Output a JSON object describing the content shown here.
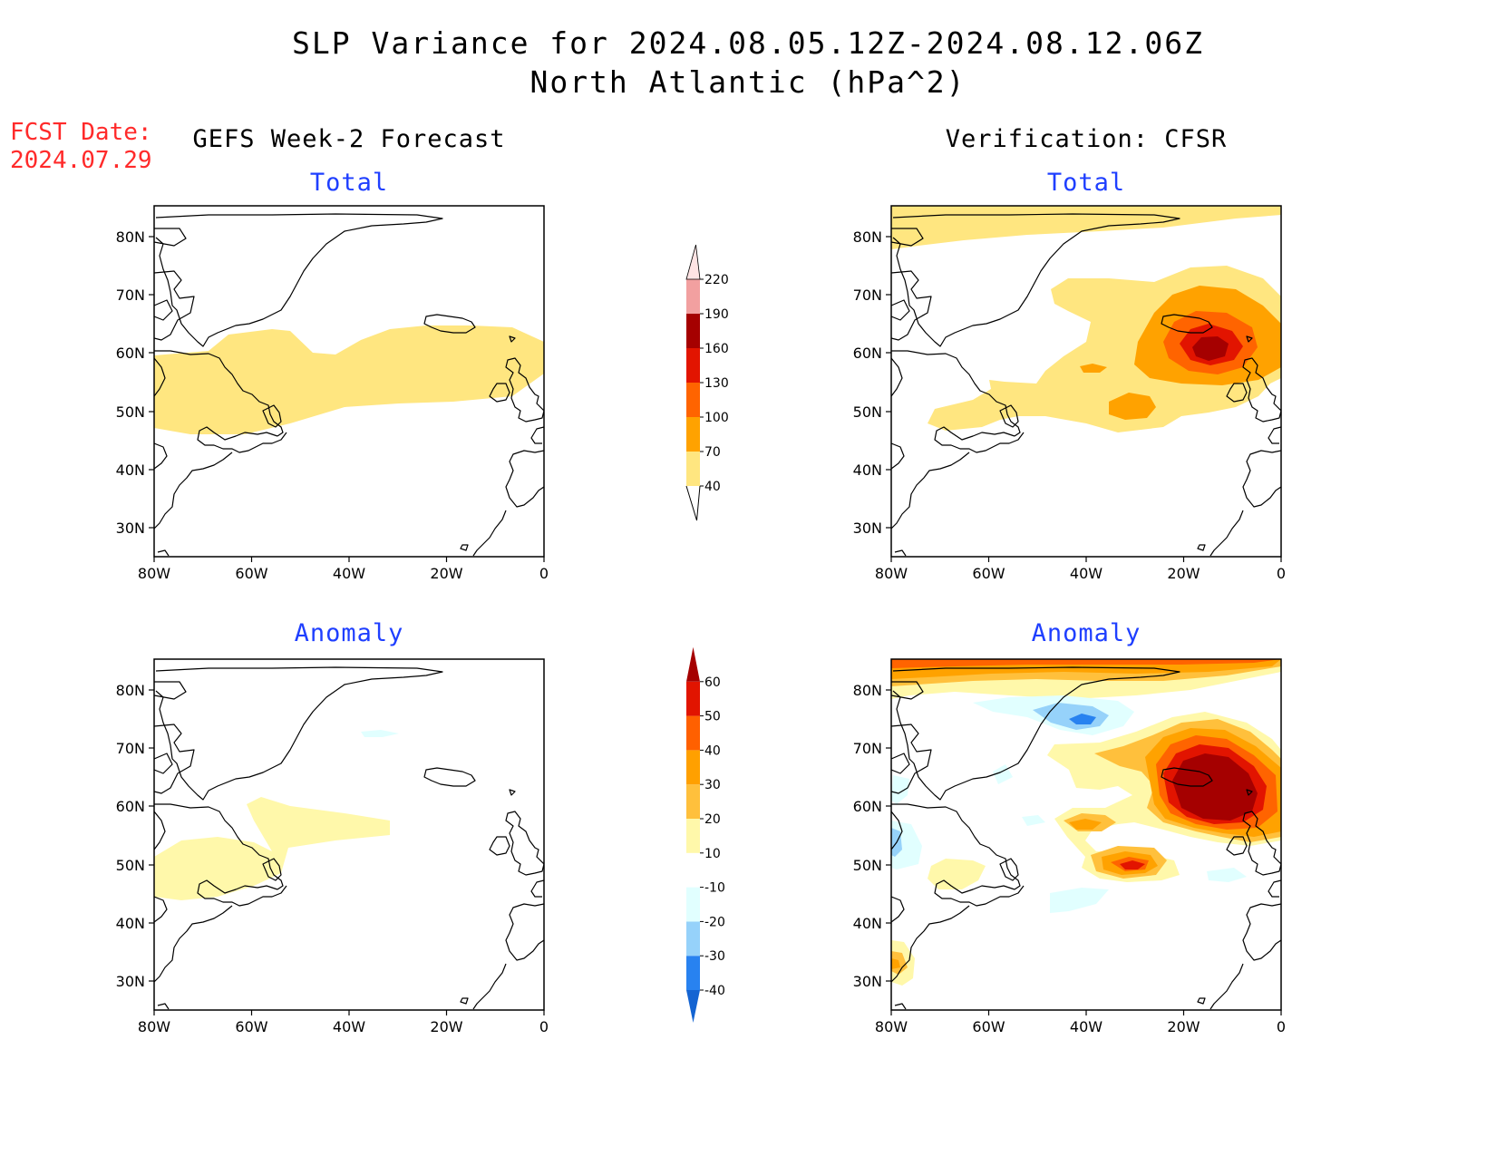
{
  "title_line1": "SLP Variance for 2024.08.05.12Z-2024.08.12.06Z",
  "title_line2": "North Atlantic (hPa^2)",
  "fcst_date_label": "FCST Date:",
  "fcst_date_value": "2024.07.29",
  "left_column_title": "GEFS Week-2 Forecast",
  "right_column_title": "Verification: CFSR",
  "panel_total_label": "Total",
  "panel_anomaly_label": "Anomaly",
  "lat_ticks": [
    "30N",
    "40N",
    "50N",
    "60N",
    "70N",
    "80N"
  ],
  "lon_ticks": [
    "80W",
    "60W",
    "40W",
    "20W",
    "0"
  ],
  "colorbar_total": {
    "levels": [
      "40",
      "70",
      "100",
      "130",
      "160",
      "190",
      "220"
    ],
    "colors": [
      "#ffe680",
      "#ffa200",
      "#ff6400",
      "#e21400",
      "#a50000",
      "#f2a0a0",
      "#ffe4e4"
    ]
  },
  "colorbar_anomaly": {
    "levels": [
      "-40",
      "-30",
      "-20",
      "-10",
      "10",
      "20",
      "30",
      "40",
      "50",
      "60"
    ],
    "colors": [
      "#1464d2",
      "#2882f0",
      "#96d2fa",
      "#e1ffff",
      "#ffffff",
      "#fff8aa",
      "#ffc03c",
      "#ffa000",
      "#ff6000",
      "#e11400",
      "#a50000"
    ]
  },
  "field_colors": {
    "light_yellow": "#fff8aa",
    "yellow": "#ffe680",
    "light_orange": "#ffc03c",
    "orange": "#ffa200",
    "dark_orange": "#ff6400",
    "red": "#e21400",
    "dark_red": "#a50000",
    "cyan_light": "#e1ffff",
    "blue_light": "#96d2fa",
    "blue": "#2882f0"
  }
}
